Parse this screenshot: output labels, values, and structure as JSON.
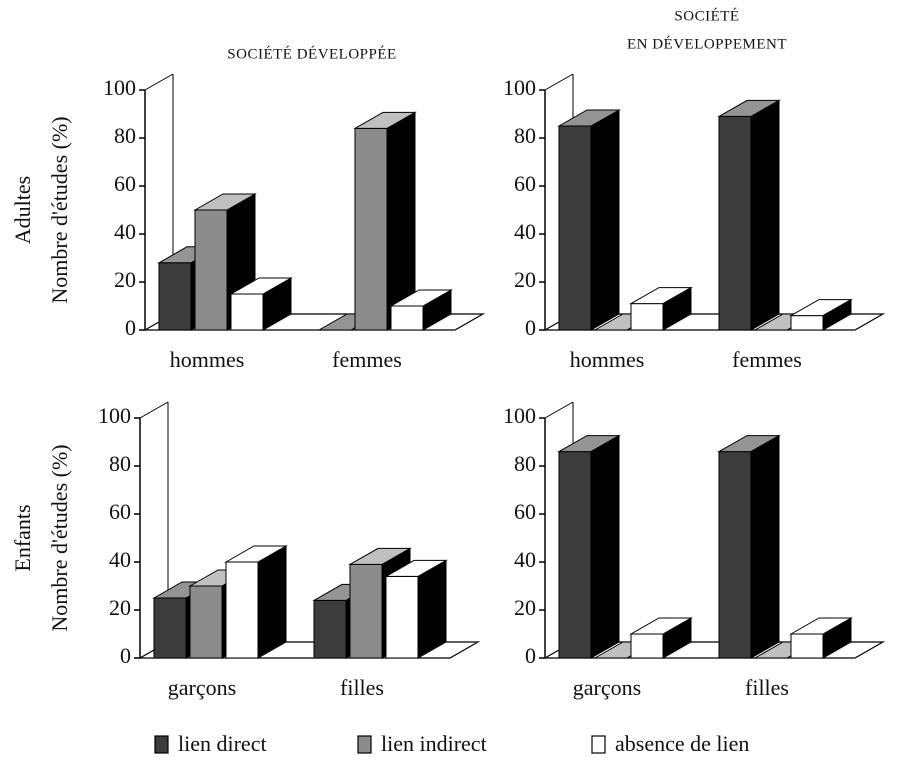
{
  "chart_data": [
    {
      "type": "bar3d",
      "title": "SOCIÉTÉ DÉVELOPPÉE",
      "row_label": "Adultes",
      "ylabel": "Nombre d'études (%)",
      "categories": [
        "hommes",
        "femmes"
      ],
      "series": [
        {
          "values": [
            28,
            0
          ]
        },
        {
          "values": [
            50,
            84
          ]
        },
        {
          "values": [
            15,
            10
          ]
        }
      ],
      "ylim": [
        0,
        100
      ],
      "yticks": [
        0,
        20,
        40,
        60,
        80,
        100
      ]
    },
    {
      "type": "bar3d",
      "title": [
        "SOCIÉTÉ",
        "EN DÉVELOPPEMENT"
      ],
      "categories": [
        "hommes",
        "femmes"
      ],
      "series": [
        {
          "values": [
            85,
            89
          ]
        },
        {
          "values": [
            0,
            0
          ]
        },
        {
          "values": [
            11,
            6
          ]
        }
      ],
      "ylim": [
        0,
        100
      ],
      "yticks": [
        0,
        20,
        40,
        60,
        80,
        100
      ]
    },
    {
      "type": "bar3d",
      "row_label": "Enfants",
      "ylabel": "Nombre d'études (%)",
      "categories": [
        "garçons",
        "filles"
      ],
      "series": [
        {
          "values": [
            25,
            24
          ]
        },
        {
          "values": [
            30,
            39
          ]
        },
        {
          "values": [
            40,
            34
          ]
        }
      ],
      "ylim": [
        0,
        100
      ],
      "yticks": [
        0,
        20,
        40,
        60,
        80,
        100
      ]
    },
    {
      "type": "bar3d",
      "categories": [
        "garçons",
        "filles"
      ],
      "series": [
        {
          "values": [
            86,
            86
          ]
        },
        {
          "values": [
            0,
            0
          ]
        },
        {
          "values": [
            10,
            10
          ]
        }
      ],
      "ylim": [
        0,
        100
      ],
      "yticks": [
        0,
        20,
        40,
        60,
        80,
        100
      ]
    }
  ],
  "legend": {
    "series": [
      {
        "name": "lien direct",
        "color": "#3c3c3c"
      },
      {
        "name": "lien indirect",
        "color": "#8c8c8c"
      },
      {
        "name": "absence de lien",
        "color": "#ffffff"
      }
    ]
  }
}
